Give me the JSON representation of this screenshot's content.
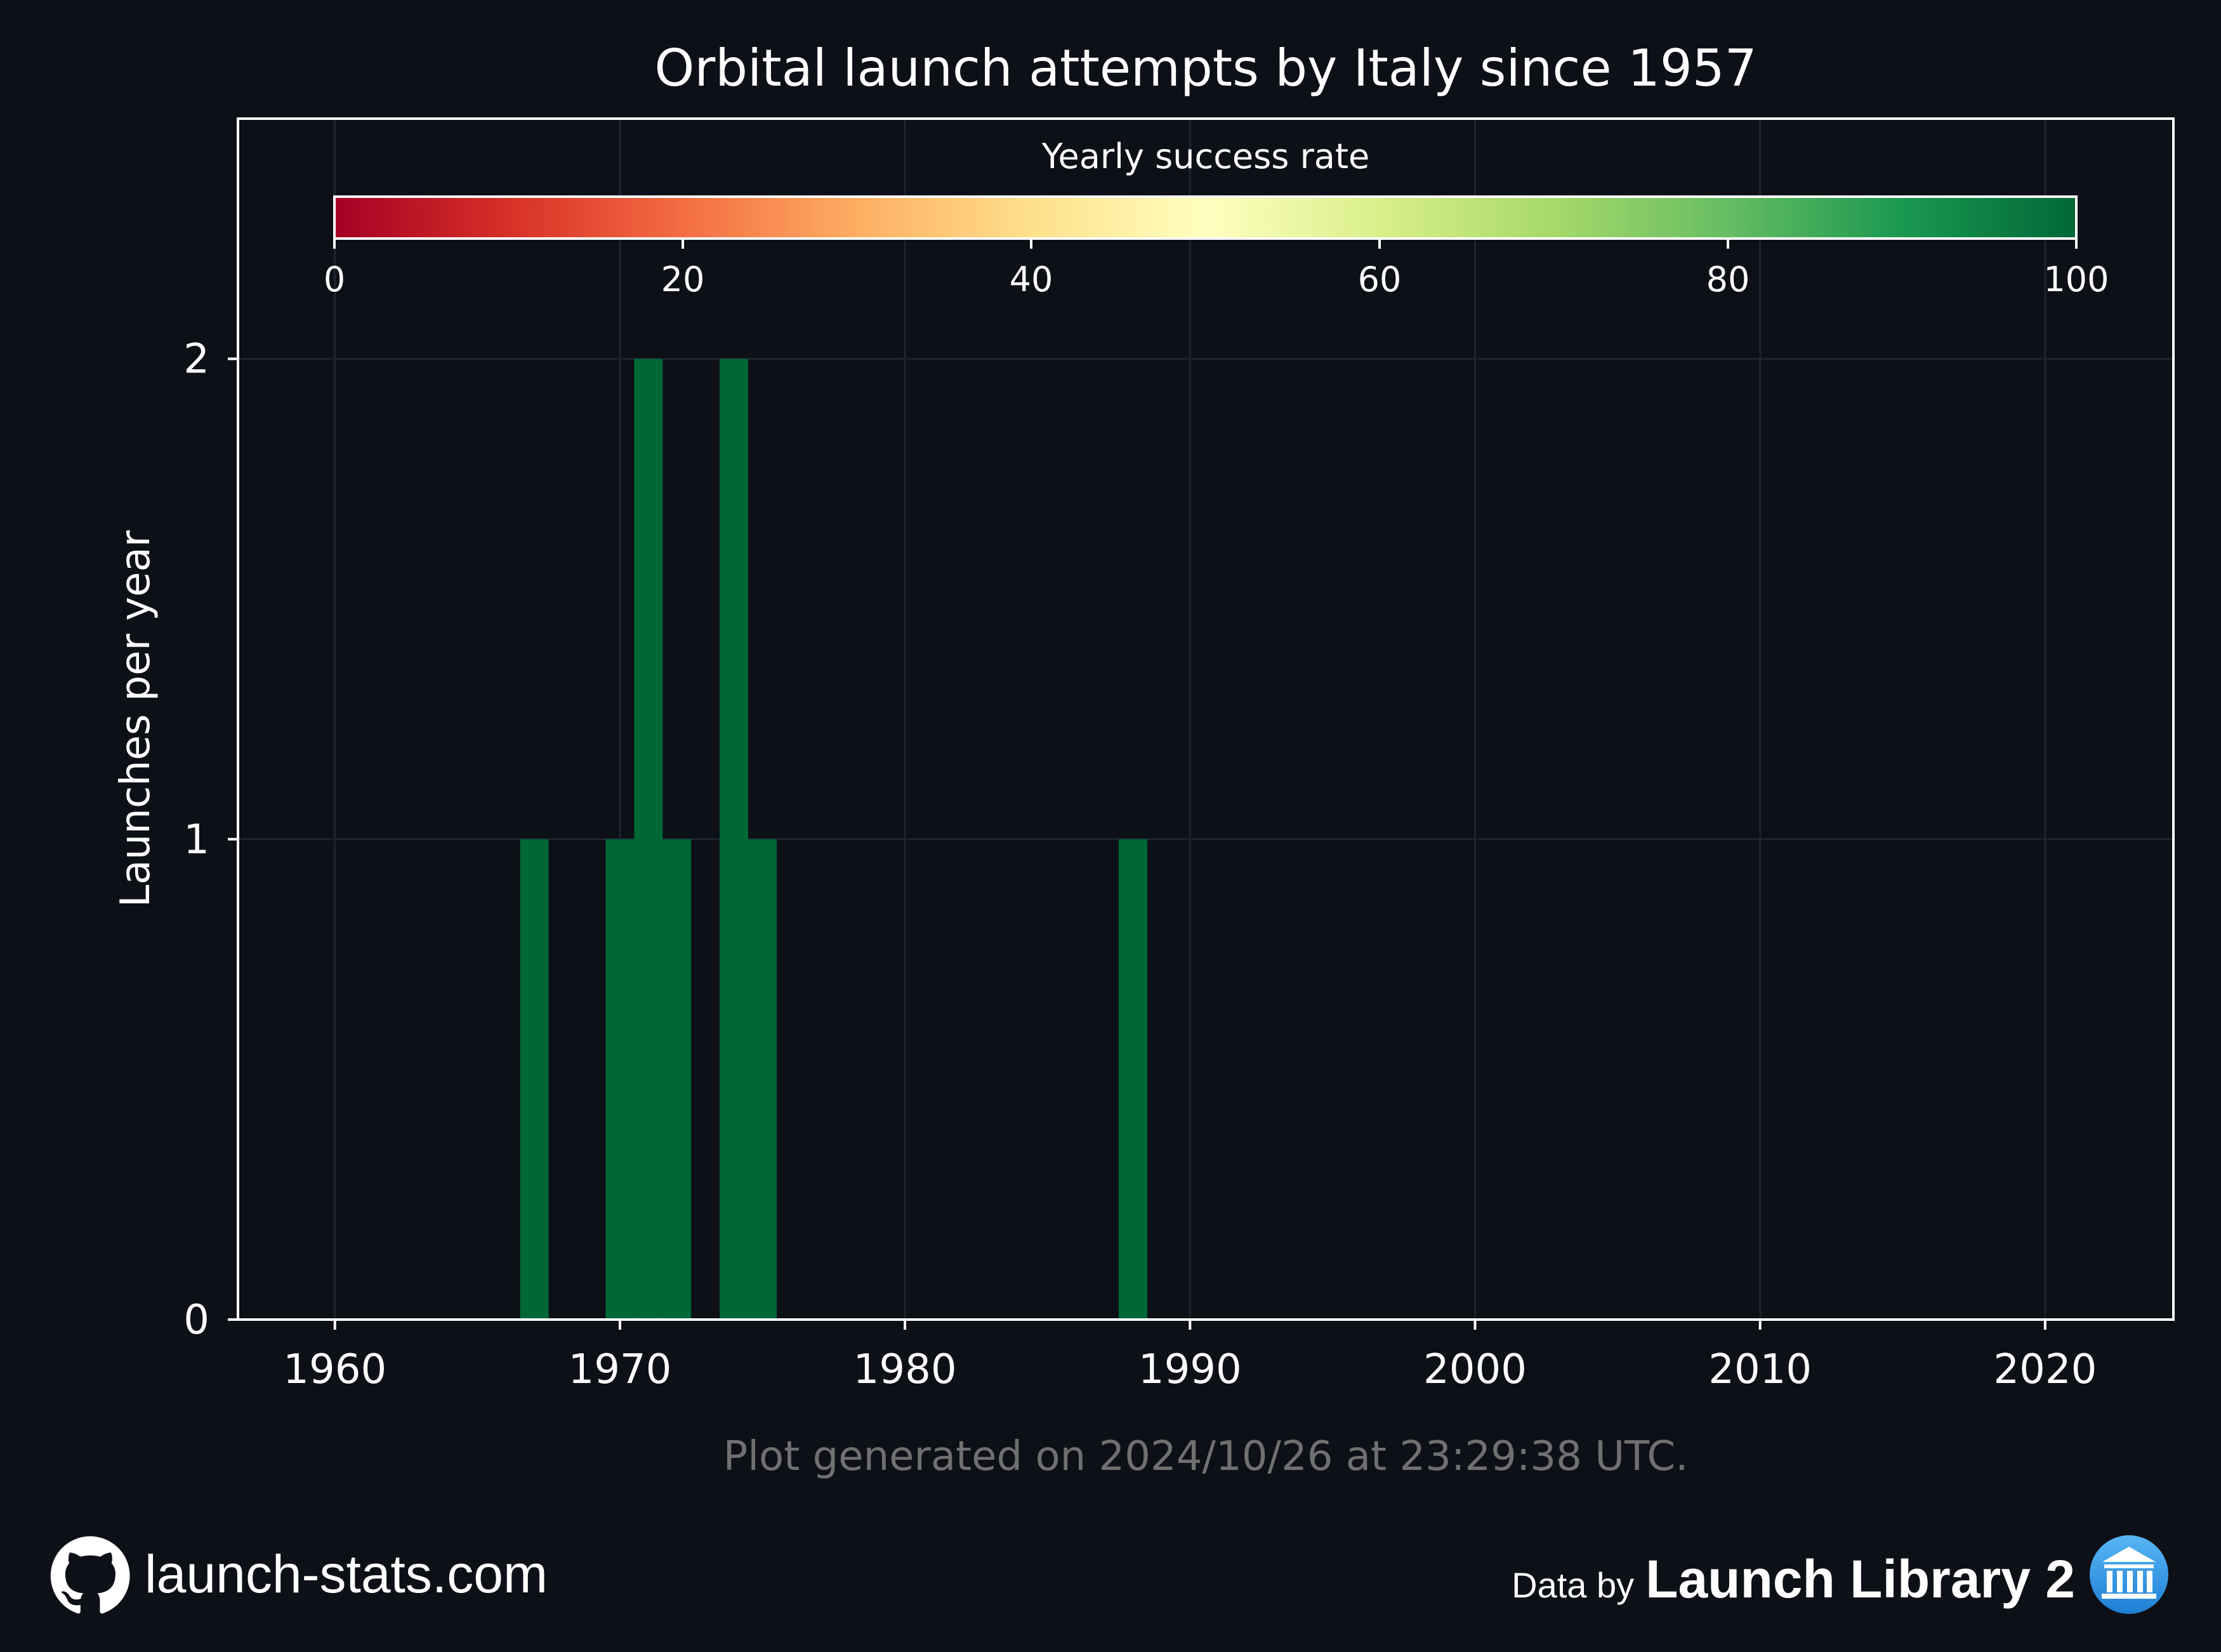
{
  "chart_data": {
    "type": "bar",
    "title": "Orbital launch attempts by Italy since 1957",
    "ylabel": "Launches per year",
    "xlabel": "",
    "xlim": [
      1956.6,
      2024.5
    ],
    "ylim": [
      0,
      2.5
    ],
    "x_ticks": [
      1960,
      1970,
      1980,
      1990,
      2000,
      2010,
      2020
    ],
    "y_ticks": [
      0,
      1,
      2
    ],
    "grid": true,
    "bar_color_metric": "Yearly success rate",
    "x": [
      1967,
      1970,
      1971,
      1972,
      1974,
      1975,
      1988
    ],
    "values": [
      1,
      1,
      2,
      1,
      2,
      1,
      1
    ],
    "success_rate": [
      100,
      100,
      100,
      100,
      100,
      100,
      100
    ],
    "colorbar": {
      "label": "Yearly success rate",
      "ticks": [
        0,
        20,
        40,
        60,
        80,
        100
      ],
      "range": [
        0,
        100
      ],
      "colormap": "RdYlGn"
    },
    "footnote": "Plot generated on 2024/10/26 at 23:29:38 UTC."
  },
  "footer": {
    "site": "launch-stats.com",
    "data_by": "Data by",
    "source": "Launch Library 2"
  },
  "colors": {
    "background": "#0d1017",
    "axes": "#ffffff",
    "grid": "#1e2430",
    "bar_full_success": "#006837",
    "footnote": "#707070",
    "badge": "#2b95e8"
  },
  "icons": {
    "site_icon": "github-icon",
    "source_icon": "bank-icon"
  }
}
